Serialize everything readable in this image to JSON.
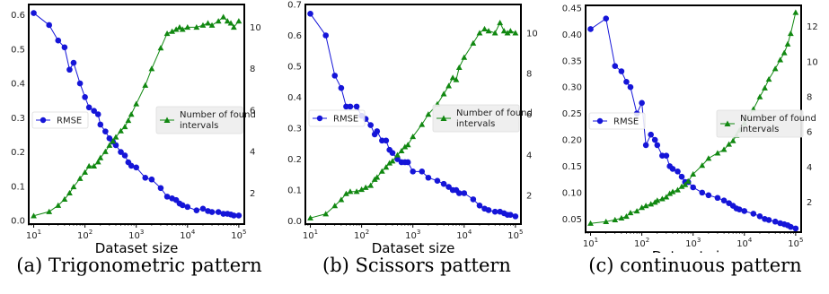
{
  "chart_data": [
    {
      "type": "line",
      "x_scale": "log",
      "xlabel": "Dataset size",
      "x_ticks": [
        "10^1",
        "10^2",
        "10^3",
        "10^4",
        "10^5"
      ],
      "caption": "(a) Trigonometric pattern",
      "left_axis": {
        "ylim": [
          -0.01,
          0.63
        ],
        "ticks": [
          "0.0",
          "0.1",
          "0.2",
          "0.3",
          "0.4",
          "0.5",
          "0.6"
        ],
        "tick_values": [
          0,
          0.1,
          0.2,
          0.3,
          0.4,
          0.5,
          0.6
        ]
      },
      "right_axis": {
        "ylim": [
          0.5,
          11.1
        ],
        "ticks": [
          "2",
          "4",
          "6",
          "8",
          "10"
        ],
        "tick_values": [
          2,
          4,
          6,
          8,
          10
        ]
      },
      "series": [
        {
          "name": "RMSE",
          "axis": "left",
          "color": "#1515d8",
          "marker": "circle",
          "x": [
            10,
            20,
            30,
            40,
            50,
            60,
            80,
            100,
            120,
            150,
            180,
            200,
            250,
            300,
            350,
            400,
            500,
            600,
            700,
            800,
            1000,
            1500,
            2000,
            3000,
            4000,
            5000,
            6000,
            7000,
            8000,
            10000,
            15000,
            20000,
            25000,
            30000,
            40000,
            50000,
            60000,
            70000,
            80000,
            100000
          ],
          "y": [
            0.605,
            0.57,
            0.525,
            0.505,
            0.44,
            0.46,
            0.4,
            0.36,
            0.33,
            0.32,
            0.31,
            0.28,
            0.26,
            0.24,
            0.23,
            0.22,
            0.2,
            0.19,
            0.17,
            0.16,
            0.155,
            0.125,
            0.12,
            0.095,
            0.07,
            0.065,
            0.06,
            0.05,
            0.045,
            0.04,
            0.03,
            0.035,
            0.028,
            0.025,
            0.025,
            0.02,
            0.02,
            0.018,
            0.015,
            0.015
          ]
        },
        {
          "name": "Number of found intervals",
          "axis": "right",
          "color": "#118811",
          "marker": "triangle",
          "x": [
            10,
            20,
            30,
            40,
            50,
            60,
            80,
            100,
            120,
            150,
            180,
            200,
            250,
            300,
            350,
            400,
            500,
            600,
            700,
            800,
            1000,
            1500,
            2000,
            3000,
            4000,
            5000,
            6000,
            7000,
            8000,
            10000,
            15000,
            20000,
            25000,
            30000,
            40000,
            50000,
            60000,
            70000,
            80000,
            100000
          ],
          "y": [
            0.9,
            1.1,
            1.4,
            1.7,
            2.0,
            2.3,
            2.7,
            3.0,
            3.3,
            3.3,
            3.5,
            3.7,
            4.0,
            4.3,
            4.5,
            4.7,
            5.0,
            5.2,
            5.5,
            5.8,
            6.3,
            7.2,
            8.0,
            9.0,
            9.7,
            9.8,
            9.9,
            10.0,
            9.9,
            10.0,
            10.0,
            10.1,
            10.2,
            10.1,
            10.3,
            10.5,
            10.3,
            10.2,
            10.0,
            10.3
          ]
        }
      ]
    },
    {
      "type": "line",
      "x_scale": "log",
      "xlabel": "Dataset size",
      "x_ticks": [
        "10^1",
        "10^2",
        "10^3",
        "10^4",
        "10^5"
      ],
      "caption": "(b) Scissors pattern",
      "left_axis": {
        "ylim": [
          -0.01,
          0.7
        ],
        "ticks": [
          "0.0",
          "0.1",
          "0.2",
          "0.3",
          "0.4",
          "0.5",
          "0.6",
          "0.7"
        ],
        "tick_values": [
          0,
          0.1,
          0.2,
          0.3,
          0.4,
          0.5,
          0.6,
          0.7
        ]
      },
      "right_axis": {
        "ylim": [
          0.6,
          11.4
        ],
        "ticks": [
          "2",
          "4",
          "6",
          "8",
          "10"
        ],
        "tick_values": [
          2,
          4,
          6,
          8,
          10
        ]
      },
      "series": [
        {
          "name": "RMSE",
          "axis": "left",
          "color": "#1515d8",
          "marker": "circle",
          "x": [
            10,
            20,
            30,
            40,
            50,
            60,
            80,
            100,
            120,
            150,
            180,
            200,
            250,
            300,
            350,
            400,
            500,
            600,
            700,
            800,
            1000,
            1500,
            2000,
            3000,
            4000,
            5000,
            6000,
            7000,
            8000,
            10000,
            15000,
            20000,
            25000,
            30000,
            40000,
            50000,
            60000,
            70000,
            80000,
            100000
          ],
          "y": [
            0.67,
            0.6,
            0.47,
            0.43,
            0.37,
            0.37,
            0.37,
            0.34,
            0.33,
            0.31,
            0.28,
            0.29,
            0.26,
            0.26,
            0.23,
            0.22,
            0.2,
            0.19,
            0.19,
            0.19,
            0.16,
            0.16,
            0.14,
            0.13,
            0.12,
            0.11,
            0.1,
            0.1,
            0.09,
            0.09,
            0.07,
            0.05,
            0.04,
            0.035,
            0.03,
            0.03,
            0.025,
            0.02,
            0.02,
            0.015
          ]
        },
        {
          "name": "Number of found intervals",
          "axis": "right",
          "color": "#118811",
          "marker": "triangle",
          "x": [
            10,
            20,
            30,
            40,
            50,
            60,
            80,
            100,
            120,
            150,
            180,
            200,
            250,
            300,
            350,
            400,
            500,
            600,
            700,
            800,
            1000,
            1500,
            2000,
            3000,
            4000,
            5000,
            6000,
            7000,
            8000,
            10000,
            15000,
            20000,
            25000,
            30000,
            40000,
            50000,
            60000,
            70000,
            80000,
            100000
          ],
          "y": [
            0.9,
            1.1,
            1.5,
            1.8,
            2.1,
            2.2,
            2.2,
            2.3,
            2.4,
            2.5,
            2.8,
            2.9,
            3.2,
            3.4,
            3.6,
            3.7,
            4.0,
            4.2,
            4.4,
            4.5,
            4.9,
            5.5,
            6.0,
            6.5,
            7.0,
            7.4,
            7.8,
            7.7,
            8.3,
            8.8,
            9.5,
            10.0,
            10.2,
            10.1,
            10.0,
            10.5,
            10.1,
            10.0,
            10.1,
            10.0
          ]
        }
      ]
    },
    {
      "type": "line",
      "x_scale": "log",
      "xlabel": "Dataset size",
      "x_ticks": [
        "10^1",
        "10^2",
        "10^3",
        "10^4",
        "10^5"
      ],
      "caption": "(c) continuous pattern",
      "left_axis": {
        "ylim": [
          0.025,
          0.455
        ],
        "ticks": [
          "0.05",
          "0.10",
          "0.15",
          "0.20",
          "0.25",
          "0.30",
          "0.35",
          "0.40",
          "0.45"
        ],
        "tick_values": [
          0.05,
          0.1,
          0.15,
          0.2,
          0.25,
          0.3,
          0.35,
          0.4,
          0.45
        ]
      },
      "right_axis": {
        "ylim": [
          0.3,
          13.2
        ],
        "ticks": [
          "2",
          "4",
          "6",
          "8",
          "10",
          "12"
        ],
        "tick_values": [
          2,
          4,
          6,
          8,
          10,
          12
        ]
      },
      "series": [
        {
          "name": "RMSE",
          "axis": "left",
          "color": "#1515d8",
          "marker": "circle",
          "x": [
            10,
            20,
            30,
            40,
            50,
            60,
            80,
            100,
            120,
            150,
            180,
            200,
            250,
            300,
            350,
            400,
            500,
            600,
            700,
            800,
            1000,
            1500,
            2000,
            3000,
            4000,
            5000,
            6000,
            7000,
            8000,
            10000,
            15000,
            20000,
            25000,
            30000,
            40000,
            50000,
            60000,
            70000,
            80000,
            100000
          ],
          "y": [
            0.41,
            0.43,
            0.34,
            0.33,
            0.31,
            0.3,
            0.25,
            0.27,
            0.19,
            0.21,
            0.2,
            0.19,
            0.17,
            0.17,
            0.15,
            0.145,
            0.14,
            0.13,
            0.12,
            0.12,
            0.11,
            0.1,
            0.095,
            0.09,
            0.085,
            0.08,
            0.075,
            0.07,
            0.068,
            0.065,
            0.06,
            0.055,
            0.05,
            0.048,
            0.045,
            0.042,
            0.04,
            0.038,
            0.035,
            0.032
          ]
        },
        {
          "name": "Number of found intervals",
          "axis": "right",
          "color": "#118811",
          "marker": "triangle",
          "x": [
            10,
            20,
            30,
            40,
            50,
            60,
            80,
            100,
            120,
            150,
            180,
            200,
            250,
            300,
            350,
            400,
            500,
            600,
            700,
            800,
            1000,
            1500,
            2000,
            3000,
            4000,
            5000,
            6000,
            7000,
            8000,
            10000,
            15000,
            20000,
            25000,
            30000,
            40000,
            50000,
            60000,
            70000,
            80000,
            100000
          ],
          "y": [
            0.8,
            0.9,
            1.0,
            1.1,
            1.2,
            1.4,
            1.5,
            1.7,
            1.8,
            1.9,
            2.0,
            2.1,
            2.2,
            2.3,
            2.5,
            2.6,
            2.7,
            2.9,
            3.0,
            3.2,
            3.6,
            4.1,
            4.5,
            4.8,
            5.0,
            5.3,
            5.5,
            5.8,
            6.1,
            6.5,
            7.3,
            8.0,
            8.5,
            9.0,
            9.6,
            10.1,
            10.5,
            11.0,
            11.6,
            12.8
          ]
        }
      ]
    }
  ],
  "legend": {
    "rmse_label": "RMSE",
    "intervals_label_line1": "Number of found",
    "intervals_label_line2": "intervals"
  }
}
